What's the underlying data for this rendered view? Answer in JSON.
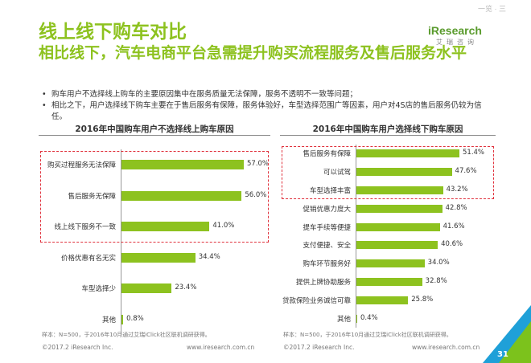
{
  "watermark": "一览 · 三",
  "title_line1": "线上线下购车对比",
  "title_line2": "相比线下，汽车电商平台急需提升购买流程服务及售后服务水平",
  "logo": {
    "brand": "iResearch",
    "sub": "艾瑞咨询"
  },
  "bullets": [
    "购车用户不选择线上购车的主要原因集中在服务质量无法保障，服务不透明不一致等问题；",
    "相比之下，用户选择线下购车主要在于售后服务有保障，服务体验好，车型选择范围广等因素，用户对4S店的售后服务仍较为信任。"
  ],
  "chart_data": [
    {
      "type": "bar",
      "orientation": "horizontal",
      "title": "2016年中国购车用户不选择线上购车原因",
      "categories": [
        "购买过程服务无法保障",
        "售后服务无保障",
        "线上线下服务不一致",
        "价格优惠有名无实",
        "车型选择少",
        "其他"
      ],
      "values": [
        57.0,
        56.0,
        41.0,
        34.4,
        23.4,
        0.8
      ],
      "value_labels": [
        "57.0%",
        "56.0%",
        "41.0%",
        "34.4%",
        "23.4%",
        "0.8%"
      ],
      "highlighted": [
        "购买过程服务无法保障",
        "售后服务无保障",
        "线上线下服务不一致"
      ],
      "color": "#8dc21f",
      "highlight_color": "#e0313c"
    },
    {
      "type": "bar",
      "orientation": "horizontal",
      "title": "2016年中国购车用户选择线下购车原因",
      "categories": [
        "售后服务有保障",
        "可以试驾",
        "车型选择丰富",
        "促销优惠力度大",
        "提车手续等便捷",
        "支付便捷、安全",
        "购车环节服务好",
        "提供上牌协助服务",
        "贷款保险业务诚信可靠",
        "其他"
      ],
      "values": [
        51.4,
        47.6,
        43.2,
        42.8,
        41.6,
        40.6,
        34.0,
        32.8,
        25.8,
        0.4
      ],
      "value_labels": [
        "51.4%",
        "47.6%",
        "43.2%",
        "42.8%",
        "41.6%",
        "40.6%",
        "34.0%",
        "32.8%",
        "25.8%",
        "0.4%"
      ],
      "highlighted": [
        "售后服务有保障",
        "可以试驾",
        "车型选择丰富"
      ],
      "color": "#8dc21f",
      "highlight_color": "#e0313c"
    }
  ],
  "notes": {
    "left": "样本：N=500，于2016年10月通过艾瑞iClick社区联机调研获得。",
    "right": "样本：N=500，于2016年10月通过艾瑞iClick社区联机调研获得。"
  },
  "copyright_left": "©2017.2 iResearch Inc.",
  "site_left": "www.iresearch.com.cn",
  "copyright_right": "©2017.2 iResearch Inc.",
  "site_right": "www.iresearch.com.cn",
  "page_number": "31"
}
